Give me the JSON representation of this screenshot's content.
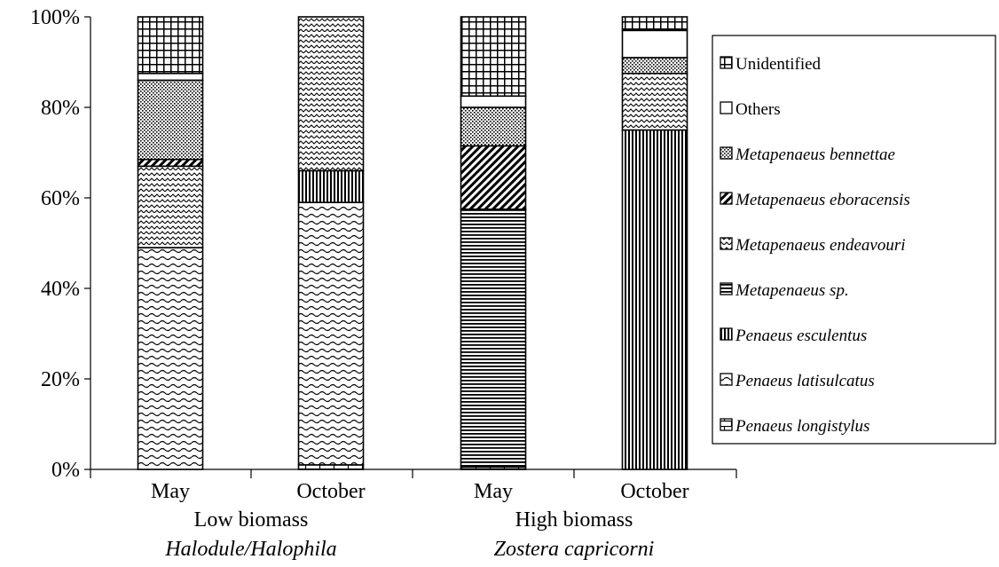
{
  "chart_data": {
    "type": "bar",
    "stacked": true,
    "normalized": true,
    "categories": [
      "May",
      "October",
      "May",
      "October"
    ],
    "groups": [
      {
        "label": "Low biomass",
        "sublabel": "Halodule/Halophila",
        "categories": [
          0,
          1
        ]
      },
      {
        "label": "High biomass",
        "sublabel": "Zostera capricorni",
        "categories": [
          2,
          3
        ]
      }
    ],
    "ylim": [
      0,
      100
    ],
    "yticks": [
      "0%",
      "20%",
      "40%",
      "60%",
      "80%",
      "100%"
    ],
    "ytick_values": [
      0,
      20,
      40,
      60,
      80,
      100
    ],
    "series": [
      {
        "name": "Penaeus longistylus",
        "italic": true,
        "pattern": "bricks",
        "values": [
          0,
          1,
          0.5,
          0
        ]
      },
      {
        "name": "Penaeus latisulcatus",
        "italic": true,
        "pattern": "waves",
        "values": [
          49,
          58,
          0,
          0
        ]
      },
      {
        "name": "Penaeus esculentus",
        "italic": true,
        "pattern": "vertical",
        "values": [
          0,
          7,
          0,
          75
        ]
      },
      {
        "name": "Metapenaeus sp.",
        "italic": true,
        "pattern": "horizontal",
        "values": [
          0,
          0,
          57,
          0
        ]
      },
      {
        "name": "Metapenaeus endeavouri",
        "italic": true,
        "pattern": "zigzag",
        "values": [
          18,
          34,
          0,
          12.5
        ]
      },
      {
        "name": "Metapenaeus eboracensis",
        "italic": true,
        "pattern": "diagonal",
        "values": [
          1.5,
          0,
          14,
          0
        ]
      },
      {
        "name": "Metapenaeus bennettae",
        "italic": true,
        "pattern": "dots",
        "values": [
          17.5,
          0,
          8.5,
          3.5
        ]
      },
      {
        "name": "Others",
        "italic": false,
        "pattern": "empty",
        "values": [
          1.5,
          0,
          2.5,
          6
        ]
      },
      {
        "name": "Unidentified",
        "italic": false,
        "pattern": "grid",
        "values": [
          12.5,
          0,
          17.5,
          3
        ]
      }
    ],
    "legend_position": "right",
    "grid": false
  }
}
